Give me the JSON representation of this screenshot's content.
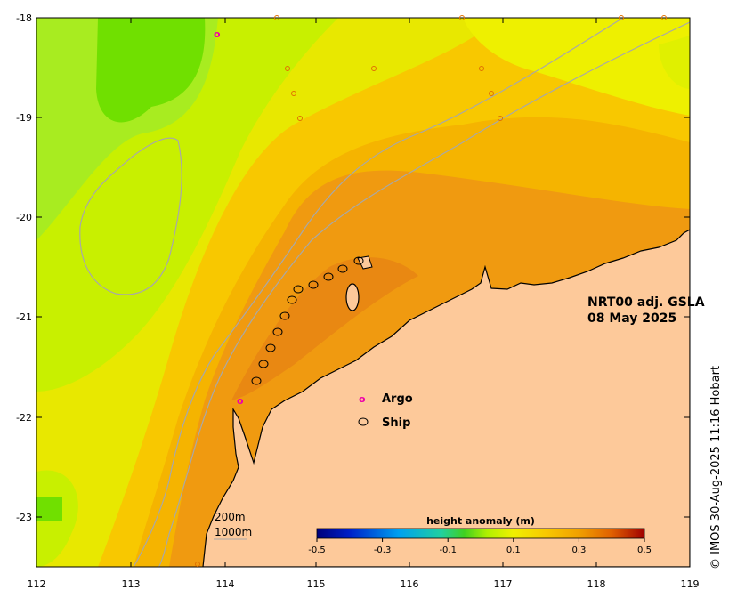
{
  "map": {
    "title_line1": "NRT00 adj. GSLA",
    "title_line2": "08 May 2025",
    "lon_ticks": [
      "112",
      "113",
      "114",
      "115",
      "116",
      "117",
      "118",
      "119"
    ],
    "lat_ticks": [
      "-18",
      "-19",
      "-20",
      "-21",
      "-22",
      "-23"
    ],
    "land_color": "#fdc99a",
    "coast_color": "#000000",
    "depth_contour_color": "#a8a8a8"
  },
  "legend": {
    "argo_label": "Argo",
    "ship_label": "Ship",
    "argo_color": "#ee00aa",
    "ship_color": "#000000"
  },
  "scale": {
    "line1": "200m",
    "line2": "1000m"
  },
  "colorbar": {
    "title": "height anomaly (m)",
    "tick_labels": [
      "-0.5",
      "-0.3",
      "-0.1",
      "0.1",
      "0.3",
      "0.5"
    ],
    "min": -0.5,
    "max": 0.5
  },
  "credit": "© IMOS 30-Aug-2025 11:16 Hobart"
}
